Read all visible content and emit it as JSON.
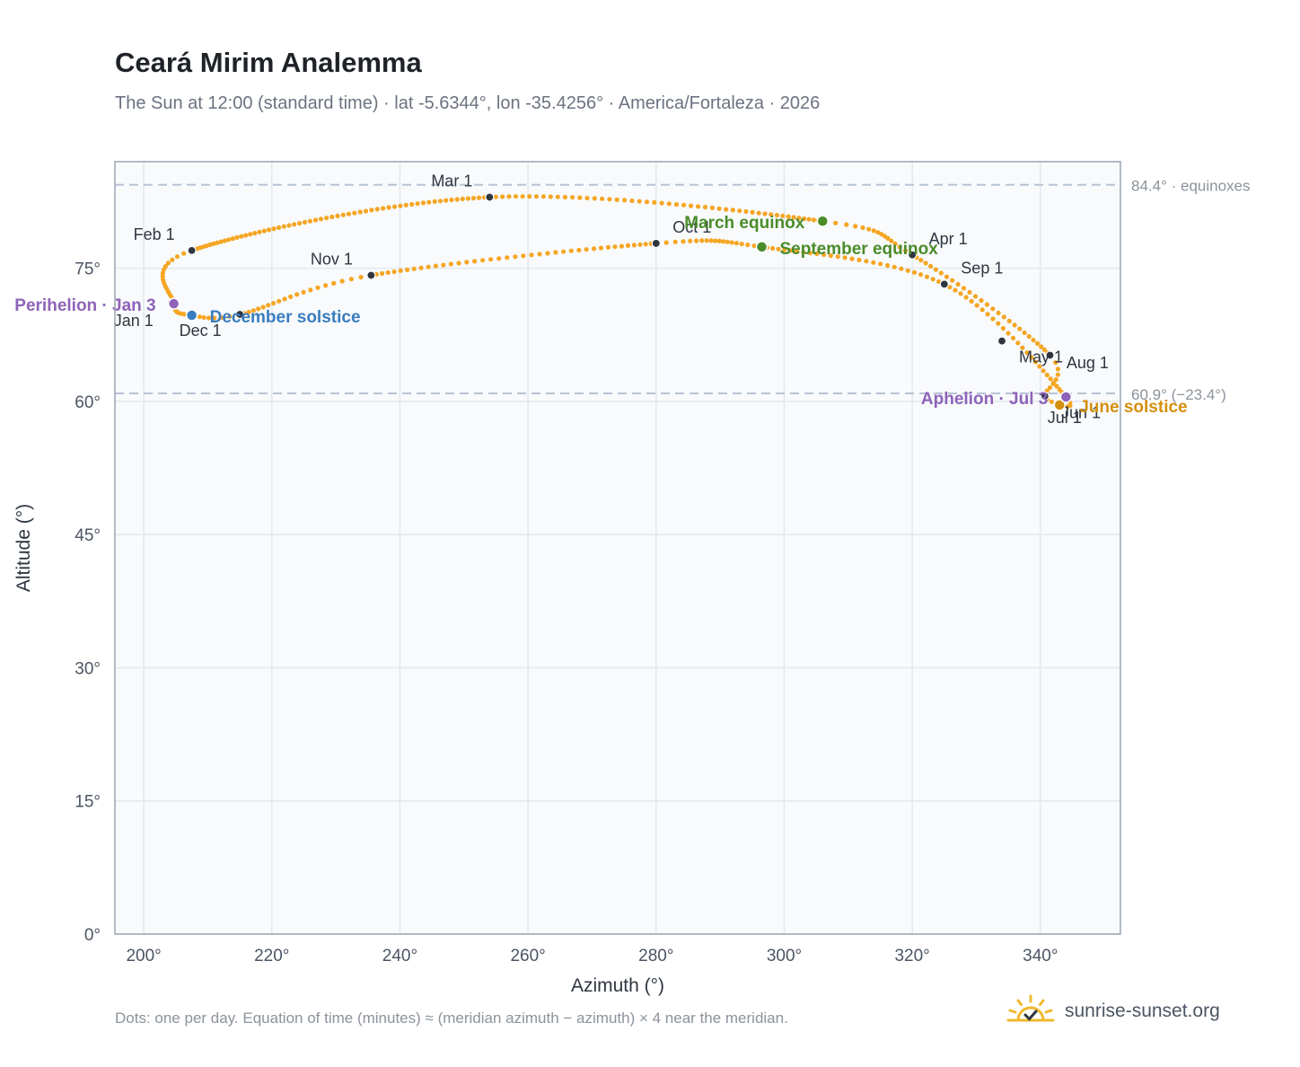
{
  "header": {
    "title": "Ceará Mirim Analemma",
    "subtitle": "The Sun at 12:00 (standard time) · lat -5.6344°, lon -35.4256° · America/Fortaleza · 2026"
  },
  "footer": {
    "note": "Dots: one per day. Equation of time (minutes) ≈ (meridian azimuth − azimuth) × 4 near the meridian.",
    "brand": "sunrise-sunset.org"
  },
  "colors": {
    "path": "#f5a623",
    "month_marker": "#2f3640",
    "equinox": "#4a8c2a",
    "december_solstice": "#3a7dc0",
    "june_solstice": "#d4900e",
    "apsis": "#8e63b8",
    "reference_line": "#b8c4d4",
    "plot_bg": "#f8fafc"
  },
  "chart_data": {
    "type": "scatter",
    "xlabel": "Azimuth (°)",
    "ylabel": "Altitude (°)",
    "xlim": [
      195.5,
      352.5
    ],
    "ylim": [
      0,
      87
    ],
    "xticks": [
      200,
      220,
      240,
      260,
      280,
      300,
      320,
      340
    ],
    "xtick_labels": [
      "200°",
      "220°",
      "240°",
      "260°",
      "280°",
      "300°",
      "320°",
      "340°"
    ],
    "yticks": [
      0,
      15,
      30,
      45,
      60,
      75
    ],
    "ytick_labels": [
      "0°",
      "15°",
      "30°",
      "45°",
      "60°",
      "75°"
    ],
    "grid": true,
    "reference_lines": [
      {
        "altitude": 84.4,
        "label": "84.4° · equinoxes"
      },
      {
        "altitude": 60.9,
        "label": "60.9° (−23.4°)"
      }
    ],
    "daily_path_anchors": [
      {
        "azimuth": 204.7,
        "altitude": 71.0
      },
      {
        "azimuth": 207.5,
        "altitude": 77.0
      },
      {
        "azimuth": 254.0,
        "altitude": 83.0
      },
      {
        "azimuth": 306.0,
        "altitude": 80.3
      },
      {
        "azimuth": 320.0,
        "altitude": 76.5
      },
      {
        "azimuth": 341.5,
        "altitude": 65.2
      },
      {
        "azimuth": 340.7,
        "altitude": 60.6
      },
      {
        "azimuth": 344.0,
        "altitude": 60.5
      },
      {
        "azimuth": 325.0,
        "altitude": 73.2
      },
      {
        "azimuth": 296.5,
        "altitude": 77.4
      },
      {
        "azimuth": 280.0,
        "altitude": 77.8
      },
      {
        "azimuth": 235.5,
        "altitude": 74.2
      },
      {
        "azimuth": 215.0,
        "altitude": 69.8
      },
      {
        "azimuth": 207.5,
        "altitude": 69.7
      },
      {
        "azimuth": 204.7,
        "altitude": 71.0
      }
    ],
    "month_markers": [
      {
        "label": "Jan 1",
        "azimuth": 204.3,
        "altitude": 71.1
      },
      {
        "label": "Feb 1",
        "azimuth": 207.5,
        "altitude": 77.0
      },
      {
        "label": "Mar 1",
        "azimuth": 254.0,
        "altitude": 83.0
      },
      {
        "label": "Apr 1",
        "azimuth": 320.0,
        "altitude": 76.5
      },
      {
        "label": "May 1",
        "azimuth": 341.5,
        "altitude": 65.2
      },
      {
        "label": "Jun 1",
        "azimuth": 334.0,
        "altitude": 66.8
      },
      {
        "label": "Jul 1",
        "azimuth": 340.7,
        "altitude": 60.6
      },
      {
        "label": "Aug 1",
        "azimuth": 344.0,
        "altitude": 60.5
      },
      {
        "label": "Sep 1",
        "azimuth": 325.0,
        "altitude": 73.2
      },
      {
        "label": "Oct 1",
        "azimuth": 280.0,
        "altitude": 77.8
      },
      {
        "label": "Nov 1",
        "azimuth": 235.5,
        "altitude": 74.2
      },
      {
        "label": "Dec 1",
        "azimuth": 215.0,
        "altitude": 69.8
      }
    ],
    "events": [
      {
        "label": "March equinox",
        "azimuth": 306.0,
        "altitude": 80.3,
        "kind": "equinox"
      },
      {
        "label": "September equinox",
        "azimuth": 296.5,
        "altitude": 77.4,
        "kind": "equinox"
      },
      {
        "label": "December solstice",
        "azimuth": 207.5,
        "altitude": 69.7,
        "kind": "december_solstice"
      },
      {
        "label": "June solstice",
        "azimuth": 343.0,
        "altitude": 59.6,
        "kind": "june_solstice"
      },
      {
        "label": "Perihelion · Jan 3",
        "azimuth": 204.7,
        "altitude": 71.0,
        "kind": "apsis"
      },
      {
        "label": "Aphelion · Jul 3",
        "azimuth": 344.0,
        "altitude": 60.5,
        "kind": "apsis"
      }
    ]
  }
}
